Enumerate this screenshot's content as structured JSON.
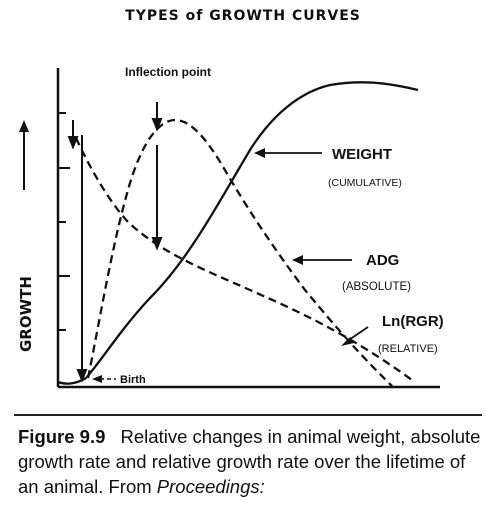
{
  "figure": {
    "title": "TYPES of GROWTH CURVES",
    "y_axis_label": "GROWTH",
    "annotations": {
      "inflection": "Inflection point",
      "birth": "Birth",
      "weight": "WEIGHT",
      "weight_sub": "(CUMULATIVE)",
      "adg": "ADG",
      "adg_sub": "(ABSOLUTE)",
      "rgr": "Ln(RGR)",
      "rgr_sub": "(RELATIVE)"
    }
  },
  "caption": {
    "label": "Figure 9.9",
    "text": "Relative changes in animal weight, absolute growth rate and relative growth rate over the lifetime of an animal. From",
    "italic": "Proceedings:"
  }
}
